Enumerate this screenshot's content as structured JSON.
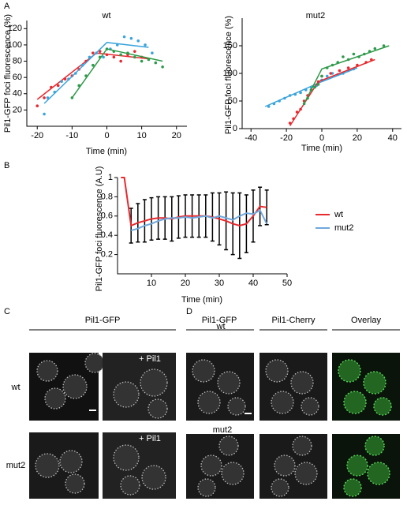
{
  "panel_labels": [
    "A",
    "B",
    "C",
    "D"
  ],
  "chart_data": [
    {
      "type": "scatter",
      "title": "wt",
      "x_label": "Time (min)",
      "y_label": "Pil1-GFP foci fluorescence (%)",
      "xlim": [
        -23,
        23
      ],
      "ylim": [
        0,
        130
      ],
      "xticks": [
        -20,
        -10,
        0,
        10,
        20
      ],
      "yticks": [
        20,
        40,
        60,
        80,
        100,
        120
      ],
      "series": [
        {
          "color": "#e8292f",
          "x": [
            -20,
            -18,
            -16,
            -14,
            -12,
            -10,
            -8,
            -6,
            -4,
            -2,
            0,
            2,
            4,
            6,
            8,
            10
          ],
          "values": [
            25,
            35,
            48,
            50,
            58,
            62,
            70,
            80,
            90,
            92,
            88,
            85,
            80,
            88,
            92,
            85
          ],
          "fit_x": [
            -20,
            -3,
            12
          ],
          "fit_values": [
            33,
            90,
            83
          ]
        },
        {
          "color": "#3aa4dc",
          "x": [
            -18,
            -17,
            -15,
            -13,
            -11,
            -9,
            -7,
            -5,
            -3,
            -1,
            1,
            3,
            5,
            7,
            9,
            11,
            13
          ],
          "values": [
            15,
            35,
            42,
            55,
            58,
            65,
            75,
            85,
            90,
            85,
            95,
            100,
            110,
            108,
            105,
            100,
            90
          ],
          "fit_x": [
            -18,
            0,
            12
          ],
          "fit_values": [
            28,
            103,
            97
          ]
        },
        {
          "color": "#2e9a4a",
          "x": [
            -10,
            -8,
            -6,
            -4,
            -2,
            0,
            2,
            4,
            6,
            8,
            10,
            12,
            14,
            16
          ],
          "values": [
            35,
            50,
            62,
            75,
            85,
            95,
            92,
            88,
            90,
            85,
            80,
            82,
            78,
            73
          ],
          "fit_x": [
            -10,
            0,
            16
          ],
          "fit_values": [
            35,
            95,
            80
          ]
        }
      ]
    },
    {
      "type": "scatter",
      "title": "mut2",
      "x_label": "Time (min)",
      "y_label": "Pil1-GFP foci fluorescence (%)",
      "xlim": [
        -45,
        45
      ],
      "ylim": [
        0,
        200
      ],
      "xticks": [
        -40,
        -20,
        0,
        20,
        40
      ],
      "yticks": [
        0,
        50,
        100,
        150
      ],
      "series": [
        {
          "color": "#3aa4dc",
          "x": [
            -30,
            -27,
            -24,
            -21,
            -18,
            -15,
            -12,
            -9,
            -6,
            -3,
            0,
            3,
            6,
            9,
            12,
            15,
            18
          ],
          "values": [
            40,
            45,
            50,
            55,
            60,
            62,
            65,
            70,
            75,
            78,
            88,
            95,
            100,
            98,
            100,
            105,
            108
          ],
          "fit_x": [
            -32,
            0,
            20
          ],
          "fit_values": [
            40,
            85,
            110
          ]
        },
        {
          "color": "#e8292f",
          "x": [
            -18,
            -16,
            -14,
            -12,
            -10,
            -8,
            -6,
            -4,
            -2,
            0,
            5,
            10,
            15,
            20,
            25,
            28
          ],
          "values": [
            10,
            18,
            30,
            35,
            50,
            60,
            70,
            75,
            85,
            95,
            100,
            105,
            110,
            115,
            120,
            125
          ],
          "fit_x": [
            -18,
            -2,
            30
          ],
          "fit_values": [
            5,
            85,
            125
          ]
        },
        {
          "color": "#2e9a4a",
          "x": [
            -10,
            -8,
            -6,
            -4,
            -2,
            0,
            3,
            6,
            9,
            12,
            15,
            18,
            21,
            24,
            27,
            30,
            35
          ],
          "values": [
            45,
            55,
            70,
            75,
            80,
            95,
            110,
            115,
            120,
            130,
            125,
            135,
            130,
            135,
            140,
            145,
            150
          ],
          "fit_x": [
            -10,
            0,
            38
          ],
          "fit_values": [
            45,
            108,
            150
          ]
        }
      ]
    },
    {
      "type": "line",
      "x_label": "Time (min)",
      "y_label": "Pil1-GFP foci fluorescence (A.U)",
      "xlim": [
        0,
        50
      ],
      "ylim": [
        0,
        1
      ],
      "xticks": [
        10,
        20,
        30,
        40,
        50
      ],
      "yticks": [
        0.2,
        0.4,
        0.6,
        0.8,
        1
      ],
      "legend": "right",
      "x": [
        1,
        2,
        4,
        6,
        8,
        10,
        12,
        14,
        16,
        18,
        20,
        22,
        24,
        26,
        28,
        30,
        32,
        34,
        36,
        38,
        40,
        42,
        44
      ],
      "series": [
        {
          "name": "wt",
          "color": "#e8292f",
          "values": [
            1,
            1,
            0.5,
            0.53,
            0.55,
            0.57,
            0.58,
            0.58,
            0.57,
            0.59,
            0.6,
            0.6,
            0.6,
            0.6,
            0.59,
            0.57,
            0.55,
            0.52,
            0.5,
            0.52,
            0.6,
            0.7,
            0.69
          ],
          "errors": [
            null,
            null,
            0.18,
            0.2,
            0.22,
            0.22,
            0.22,
            0.22,
            0.23,
            0.22,
            0.22,
            0.22,
            0.22,
            0.22,
            0.25,
            0.27,
            0.3,
            0.32,
            0.34,
            0.3,
            0.27,
            0.2,
            0.18
          ]
        },
        {
          "name": "mut2",
          "color": "#6fa8dc",
          "values": [
            null,
            null,
            0.45,
            0.47,
            0.5,
            0.52,
            0.55,
            0.57,
            0.58,
            0.58,
            0.59,
            0.58,
            0.59,
            0.6,
            0.58,
            0.6,
            0.58,
            0.56,
            0.6,
            0.63,
            0.62,
            0.66,
            0.52
          ]
        }
      ]
    }
  ],
  "micrographs": {
    "C": {
      "title": "Pil1-GFP",
      "overlay_label": "+ Pil1",
      "rows": [
        "wt",
        "mut2"
      ]
    },
    "D": {
      "columns": [
        "Pil1-GFP",
        "Pil1-Cherry",
        "Overlay"
      ],
      "rows": [
        "wt",
        "mut2"
      ]
    }
  }
}
